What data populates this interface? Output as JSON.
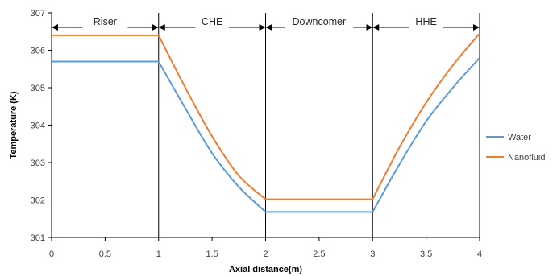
{
  "chart_data": {
    "type": "line",
    "xlabel": "Axial distance(m)",
    "ylabel": "Temperature (K)",
    "xlim": [
      0,
      4
    ],
    "ylim": [
      301,
      307
    ],
    "x_ticks": [
      "0",
      "0.5",
      "1",
      "1.5",
      "2",
      "2.5",
      "3",
      "3.5",
      "4"
    ],
    "y_ticks": [
      "301",
      "302",
      "303",
      "304",
      "305",
      "306",
      "307"
    ],
    "grid": false,
    "legend_position": "right",
    "series": [
      {
        "name": "Water",
        "color": "#5B9BD5",
        "x": [
          0,
          1,
          1.25,
          1.5,
          1.75,
          2,
          3,
          3.25,
          3.5,
          3.75,
          4
        ],
        "y": [
          305.7,
          305.7,
          304.45,
          303.25,
          302.35,
          301.68,
          301.68,
          302.95,
          304.1,
          305.0,
          305.8
        ]
      },
      {
        "name": "Nanofluid",
        "color": "#ED7D31",
        "x": [
          0,
          1,
          1.25,
          1.5,
          1.75,
          2,
          3,
          3.25,
          3.5,
          3.75,
          4
        ],
        "y": [
          306.4,
          306.4,
          305.0,
          303.7,
          302.65,
          302.02,
          302.02,
          303.4,
          304.6,
          305.6,
          306.45
        ]
      }
    ],
    "regions": [
      {
        "label": "Riser",
        "x_start": 0,
        "x_end": 1
      },
      {
        "label": "CHE",
        "x_start": 1,
        "x_end": 2
      },
      {
        "label": "Downcomer",
        "x_start": 2,
        "x_end": 3
      },
      {
        "label": "HHE",
        "x_start": 3,
        "x_end": 4
      }
    ],
    "region_dividers": [
      1,
      2,
      3,
      4
    ]
  }
}
